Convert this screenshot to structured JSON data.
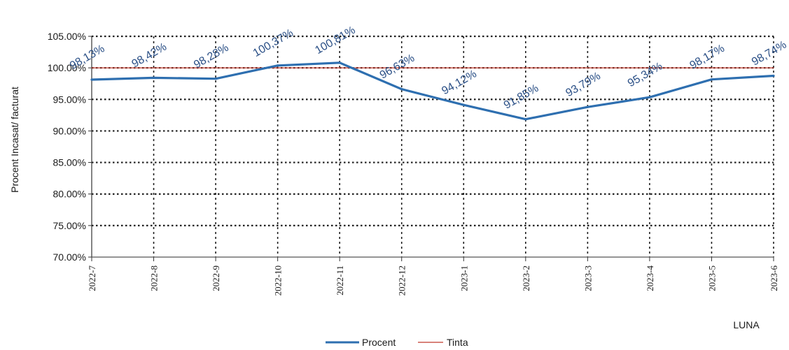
{
  "chart_data": {
    "type": "line",
    "title": "",
    "xlabel": "LUNA",
    "ylabel": "Procent Incasat/ facturat",
    "categories": [
      "2022-7",
      "2022-8",
      "2022-9",
      "2022-10",
      "2022-11",
      "2022-12",
      "2023-1",
      "2023-2",
      "2023-3",
      "2023-4",
      "2023-5",
      "2023-6"
    ],
    "ylim": [
      70,
      105
    ],
    "yticks": [
      {
        "value": 70,
        "label": "70.00%"
      },
      {
        "value": 75,
        "label": "75.00%"
      },
      {
        "value": 80,
        "label": "80.00%"
      },
      {
        "value": 85,
        "label": "85.00%"
      },
      {
        "value": 90,
        "label": "90.00%"
      },
      {
        "value": 95,
        "label": "95.00%"
      },
      {
        "value": 100,
        "label": "100.00%"
      },
      {
        "value": 105,
        "label": "105.00%"
      }
    ],
    "grid": true,
    "legend_position": "bottom",
    "series": [
      {
        "name": "Procent",
        "color": "#2e6fb0",
        "values": [
          98.13,
          98.42,
          98.28,
          100.37,
          100.81,
          96.63,
          94.12,
          91.85,
          93.79,
          95.34,
          98.17,
          98.74
        ],
        "labels": [
          "98,13%",
          "98,42%",
          "98,28%",
          "100,37%",
          "100,81%",
          "96,63%",
          "94,12%",
          "91,85%",
          "93,79%",
          "95,34%",
          "98,17%",
          "98,74%"
        ]
      },
      {
        "name": "Tinta",
        "color": "#c0392b",
        "values": [
          100,
          100,
          100,
          100,
          100,
          100,
          100,
          100,
          100,
          100,
          100,
          100
        ]
      }
    ]
  }
}
